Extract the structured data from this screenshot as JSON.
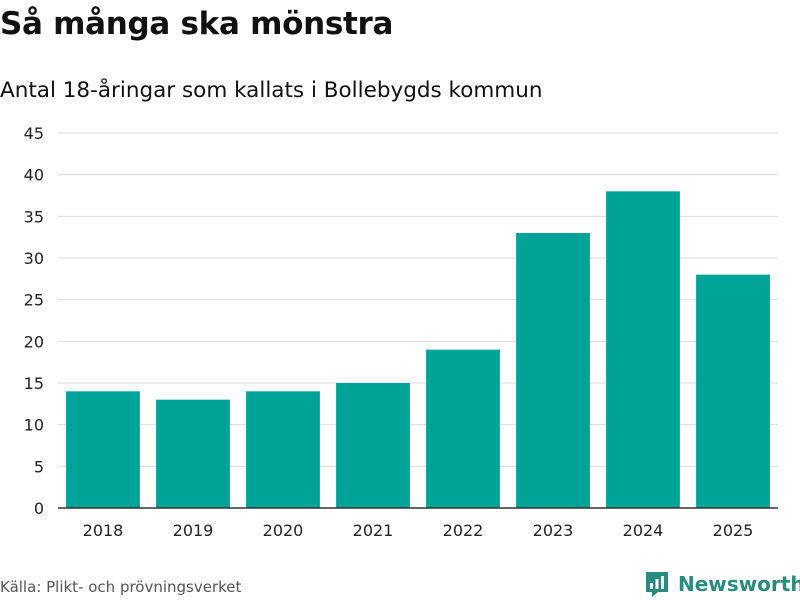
{
  "header": {
    "title": "Så många ska mönstra",
    "subtitle": "Antal 18-åringar som kallats i Bollebygds kommun"
  },
  "chart_data": {
    "type": "bar",
    "title": "Så många ska mönstra",
    "subtitle": "Antal 18-åringar som kallats i Bollebygds kommun",
    "categories": [
      "2018",
      "2019",
      "2020",
      "2021",
      "2022",
      "2023",
      "2024",
      "2025"
    ],
    "values": [
      14,
      13,
      14,
      15,
      19,
      33,
      38,
      28
    ],
    "xlabel": "",
    "ylabel": "",
    "ylim": [
      0,
      45
    ],
    "yticks": [
      0,
      5,
      10,
      15,
      20,
      25,
      30,
      35,
      40,
      45
    ],
    "grid": true,
    "bar_color": "#00a398",
    "grid_color": "#dddddd"
  },
  "footer": {
    "source": "Källa: Plikt- och prövningsverket",
    "brand": "Newsworthy",
    "brand_color": "#2a8b80"
  }
}
